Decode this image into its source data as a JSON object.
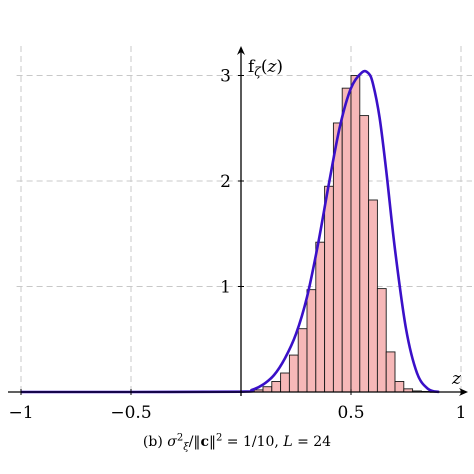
{
  "chart_data": {
    "type": "bar",
    "title": "",
    "caption": "(b) σ_ξ²/‖c‖² = 1/10, L = 24",
    "xlabel": "z",
    "ylabel": "f_ζ(z)",
    "xlim": [
      -1.02,
      1.05
    ],
    "ylim": [
      0,
      3.3
    ],
    "x_ticks": [
      -1,
      -0.5,
      0.5,
      1
    ],
    "x_tick_labels": [
      "−1",
      "−0.5",
      "0.5",
      "1"
    ],
    "y_ticks": [
      1,
      2,
      3
    ],
    "y_tick_labels": [
      "1",
      "2",
      "3"
    ],
    "grid": true,
    "histogram": {
      "bin_width": 0.04,
      "bin_starts": [
        0.06,
        0.1,
        0.14,
        0.18,
        0.22,
        0.26,
        0.3,
        0.34,
        0.38,
        0.42,
        0.46,
        0.5,
        0.54,
        0.58,
        0.62,
        0.66,
        0.7,
        0.74,
        0.78,
        0.82,
        0.86
      ],
      "values": [
        0.02,
        0.05,
        0.1,
        0.18,
        0.35,
        0.6,
        0.97,
        1.42,
        1.95,
        2.55,
        2.88,
        3.0,
        2.62,
        1.82,
        0.98,
        0.38,
        0.1,
        0.03,
        0.01,
        0.005,
        0.002
      ]
    },
    "density_curve": {
      "x": [
        -1.0,
        -0.5,
        0.0,
        0.05,
        0.1,
        0.15,
        0.2,
        0.25,
        0.3,
        0.35,
        0.4,
        0.45,
        0.5,
        0.55,
        0.58,
        0.6,
        0.63,
        0.66,
        0.7,
        0.75,
        0.8,
        0.85,
        0.9
      ],
      "y": [
        0.0,
        0.0,
        0.003,
        0.02,
        0.07,
        0.16,
        0.32,
        0.55,
        0.9,
        1.4,
        1.98,
        2.52,
        2.88,
        3.03,
        3.02,
        2.92,
        2.6,
        2.1,
        1.35,
        0.6,
        0.18,
        0.03,
        0.0
      ],
      "color": "#3a10c8"
    },
    "bar_color": "#f6b8b8"
  }
}
